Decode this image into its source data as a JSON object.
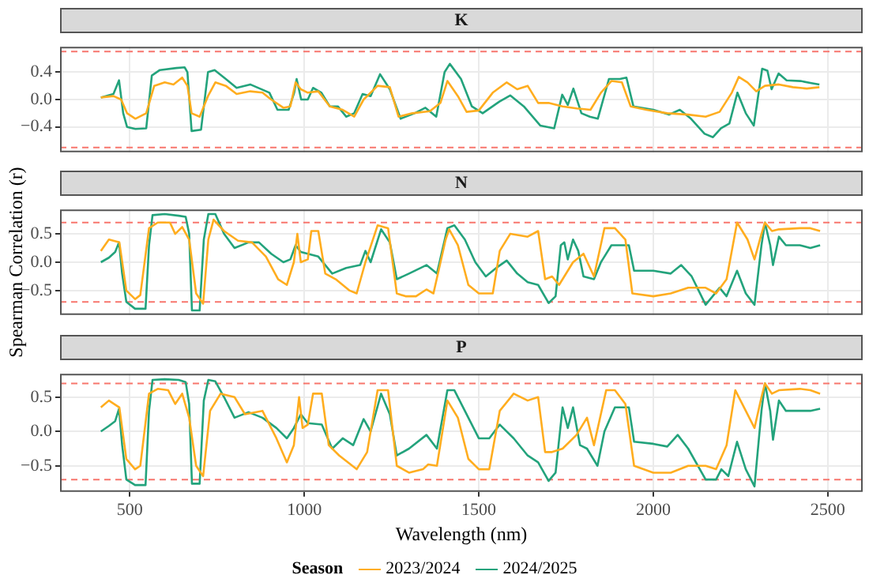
{
  "chart_data": [
    {
      "type": "line",
      "title": "K",
      "xlim": [
        300,
        2600
      ],
      "xticks": [
        500,
        1000,
        1500,
        2000,
        2500
      ],
      "ylim": [
        -0.77,
        0.77
      ],
      "yticks": [
        {
          "value": -0.4,
          "label": "−0.4"
        },
        {
          "value": 0,
          "label": "0.0"
        },
        {
          "value": 0.4,
          "label": "0.4"
        }
      ],
      "tick_labels": "y",
      "grid": true,
      "line_style": "solid",
      "ref_lines": [
        {
          "axis": "y",
          "value": 0.7,
          "color": "#f8766d",
          "line_style": "dashed"
        },
        {
          "axis": "y",
          "value": -0.7,
          "color": "#f8766d",
          "line_style": "dashed"
        }
      ],
      "series": [
        {
          "color": "#ffad1f",
          "x": [
            417,
            453,
            475,
            492,
            516,
            547,
            570,
            600,
            625,
            650,
            665,
            677,
            700,
            724,
            745,
            775,
            806,
            845,
            880,
            905,
            940,
            960,
            975,
            990,
            1010,
            1040,
            1073,
            1110,
            1143,
            1170,
            1210,
            1245,
            1270,
            1310,
            1360,
            1390,
            1410,
            1440,
            1465,
            1500,
            1540,
            1580,
            1610,
            1640,
            1670,
            1700,
            1740,
            1780,
            1820,
            1850,
            1880,
            1910,
            1935,
            1980,
            2040,
            2100,
            2150,
            2190,
            2225,
            2245,
            2270,
            2295,
            2320,
            2360,
            2400,
            2440,
            2476
          ],
          "values": [
            0.03,
            0.05,
            0,
            -0.2,
            -0.28,
            -0.2,
            0.2,
            0.25,
            0.22,
            0.32,
            0.2,
            -0.2,
            -0.25,
            0.05,
            0.25,
            0.2,
            0.08,
            0.12,
            0.1,
            0,
            -0.12,
            -0.1,
            0.25,
            0.15,
            0.1,
            0.12,
            -0.1,
            -0.15,
            -0.25,
            0,
            0.2,
            0.18,
            -0.25,
            -0.2,
            -0.17,
            -0.05,
            0.27,
            0.05,
            -0.18,
            -0.16,
            0.1,
            0.25,
            0.15,
            0.2,
            -0.05,
            -0.05,
            -0.1,
            -0.13,
            -0.15,
            0.1,
            0.27,
            0.25,
            -0.1,
            -0.15,
            -0.2,
            -0.22,
            -0.25,
            -0.18,
            0.1,
            0.33,
            0.25,
            0.12,
            0.2,
            0.22,
            0.18,
            0.16,
            0.18
          ]
        },
        {
          "color": "#23a37c",
          "x": [
            417,
            453,
            469,
            481,
            492,
            516,
            547,
            563,
            586,
            633,
            657,
            665,
            677,
            704,
            724,
            743,
            775,
            806,
            845,
            900,
            923,
            955,
            971,
            978,
            991,
            1010,
            1025,
            1049,
            1073,
            1096,
            1120,
            1143,
            1167,
            1190,
            1217,
            1245,
            1276,
            1316,
            1347,
            1378,
            1402,
            1417,
            1449,
            1480,
            1511,
            1559,
            1590,
            1629,
            1676,
            1716,
            1739,
            1755,
            1771,
            1794,
            1818,
            1841,
            1873,
            1904,
            1923,
            1943,
            2000,
            2045,
            2076,
            2108,
            2147,
            2171,
            2194,
            2218,
            2241,
            2265,
            2288,
            2312,
            2327,
            2339,
            2359,
            2382,
            2422,
            2453,
            2476
          ],
          "values": [
            0.03,
            0.08,
            0.28,
            -0.2,
            -0.4,
            -0.43,
            -0.42,
            0.35,
            0.43,
            0.46,
            0.47,
            0.4,
            -0.46,
            -0.44,
            0.4,
            0.43,
            0.3,
            0.17,
            0.22,
            0.1,
            -0.15,
            -0.15,
            0.1,
            0.3,
            0,
            0,
            0.17,
            0.1,
            -0.1,
            -0.1,
            -0.25,
            -0.2,
            0.08,
            0.05,
            0.37,
            0.15,
            -0.28,
            -0.2,
            -0.12,
            -0.25,
            0.4,
            0.52,
            0.3,
            -0.1,
            -0.2,
            -0.03,
            0.06,
            -0.1,
            -0.38,
            -0.42,
            0.07,
            -0.08,
            0.16,
            -0.2,
            -0.25,
            -0.28,
            0.3,
            0.3,
            0.32,
            -0.1,
            -0.15,
            -0.22,
            -0.15,
            -0.28,
            -0.5,
            -0.55,
            -0.42,
            -0.35,
            0.1,
            -0.2,
            -0.38,
            0.45,
            0.42,
            0.15,
            0.38,
            0.28,
            0.27,
            0.24,
            0.22
          ]
        }
      ]
    },
    {
      "type": "line",
      "title": "N",
      "ylabel": "Spearman Correlation (r)",
      "xlim": [
        300,
        2600
      ],
      "xticks": [
        500,
        1000,
        1500,
        2000,
        2500
      ],
      "ylim": [
        -0.93,
        0.93
      ],
      "yticks": [
        {
          "value": -0.5,
          "label": "−0.5"
        },
        {
          "value": 0,
          "label": "0.0"
        },
        {
          "value": 0.5,
          "label": "0.5"
        }
      ],
      "tick_labels": "y",
      "grid": true,
      "line_style": "solid",
      "ref_lines": [
        {
          "axis": "y",
          "value": 0.7,
          "color": "#f8766d",
          "line_style": "dashed"
        },
        {
          "axis": "y",
          "value": -0.7,
          "color": "#f8766d",
          "line_style": "dashed"
        }
      ],
      "series": [
        {
          "color": "#ffad1f",
          "x": [
            417,
            440,
            470,
            490,
            515,
            530,
            555,
            580,
            615,
            630,
            650,
            670,
            690,
            710,
            725,
            740,
            770,
            810,
            850,
            890,
            925,
            950,
            970,
            980,
            990,
            1010,
            1020,
            1040,
            1060,
            1090,
            1130,
            1150,
            1175,
            1210,
            1240,
            1265,
            1290,
            1320,
            1350,
            1370,
            1405,
            1415,
            1440,
            1470,
            1500,
            1540,
            1560,
            1590,
            1640,
            1670,
            1690,
            1710,
            1730,
            1770,
            1800,
            1830,
            1860,
            1890,
            1920,
            1940,
            2000,
            2050,
            2100,
            2150,
            2180,
            2210,
            2240,
            2270,
            2290,
            2310,
            2320,
            2340,
            2360,
            2420,
            2450,
            2478
          ],
          "values": [
            0.2,
            0.4,
            0.35,
            -0.5,
            -0.65,
            -0.58,
            0.6,
            0.7,
            0.7,
            0.5,
            0.62,
            0.4,
            -0.55,
            -0.73,
            0.4,
            0.75,
            0.55,
            0.38,
            0.35,
            0.1,
            -0.3,
            -0.4,
            0,
            0.5,
            0,
            0.05,
            0.55,
            0.55,
            -0.2,
            -0.3,
            -0.5,
            -0.55,
            0,
            0.65,
            0.6,
            -0.55,
            -0.6,
            -0.6,
            -0.48,
            -0.55,
            0.4,
            0.58,
            0.3,
            -0.4,
            -0.55,
            -0.55,
            0.2,
            0.5,
            0.45,
            0.55,
            -0.3,
            -0.25,
            -0.4,
            0,
            0.15,
            -0.25,
            0.6,
            0.6,
            0.4,
            -0.55,
            -0.6,
            -0.55,
            -0.45,
            -0.45,
            -0.55,
            -0.3,
            0.7,
            0.4,
            0.05,
            0.5,
            0.7,
            0.55,
            0.58,
            0.6,
            0.6,
            0.55
          ]
        },
        {
          "color": "#23a37c",
          "x": [
            417,
            440,
            458,
            469,
            478,
            490,
            515,
            545,
            555,
            565,
            600,
            640,
            660,
            670,
            678,
            700,
            712,
            725,
            745,
            770,
            800,
            840,
            870,
            905,
            940,
            960,
            975,
            990,
            1040,
            1080,
            1120,
            1160,
            1175,
            1190,
            1220,
            1245,
            1265,
            1300,
            1350,
            1380,
            1410,
            1430,
            1460,
            1490,
            1520,
            1550,
            1580,
            1610,
            1640,
            1670,
            1700,
            1720,
            1735,
            1745,
            1755,
            1770,
            1785,
            1800,
            1830,
            1850,
            1880,
            1910,
            1930,
            1945,
            2000,
            2050,
            2080,
            2110,
            2150,
            2190,
            2210,
            2240,
            2265,
            2290,
            2310,
            2320,
            2335,
            2343,
            2360,
            2380,
            2420,
            2450,
            2478
          ],
          "values": [
            0,
            0.08,
            0.18,
            0.35,
            -0.2,
            -0.7,
            -0.82,
            -0.82,
            0.3,
            0.83,
            0.85,
            0.82,
            0.8,
            0.5,
            -0.85,
            -0.85,
            0.4,
            0.85,
            0.85,
            0.5,
            0.25,
            0.35,
            0.35,
            0.15,
            0,
            0.05,
            0.3,
            0.18,
            0.1,
            -0.2,
            -0.1,
            -0.05,
            0.2,
            0,
            0.58,
            0.35,
            -0.3,
            -0.2,
            -0.05,
            -0.2,
            0.6,
            0.65,
            0.4,
            0,
            -0.25,
            -0.1,
            0.03,
            -0.2,
            -0.35,
            -0.4,
            -0.72,
            -0.6,
            0.3,
            0.35,
            0.05,
            0.4,
            0.2,
            -0.25,
            -0.3,
            0,
            0.3,
            0.3,
            0.3,
            -0.15,
            -0.15,
            -0.2,
            -0.05,
            -0.25,
            -0.75,
            -0.45,
            -0.6,
            -0.15,
            -0.55,
            -0.75,
            0.3,
            0.7,
            0.3,
            -0.05,
            0.45,
            0.3,
            0.3,
            0.25,
            0.3
          ]
        }
      ]
    },
    {
      "type": "line",
      "title": "P",
      "xlabel": "Wavelength (nm)",
      "legend": "bottom",
      "legend_title": "Season",
      "xlim": [
        300,
        2600
      ],
      "xticks": [
        500,
        1000,
        1500,
        2000,
        2500
      ],
      "ylim": [
        -0.88,
        0.84
      ],
      "yticks": [
        {
          "value": -0.5,
          "label": "−0.5"
        },
        {
          "value": 0,
          "label": "0.0"
        },
        {
          "value": 0.5,
          "label": "0.5"
        }
      ],
      "grid": true,
      "line_style": "solid",
      "ref_lines": [
        {
          "axis": "y",
          "value": 0.7,
          "color": "#f8766d",
          "line_style": "dashed"
        },
        {
          "axis": "y",
          "value": -0.7,
          "color": "#f8766d",
          "line_style": "dashed"
        }
      ],
      "series": [
        {
          "name": "2023/2024",
          "color": "#ffad1f",
          "x": [
            417,
            440,
            470,
            490,
            515,
            530,
            555,
            580,
            610,
            630,
            650,
            670,
            690,
            710,
            730,
            760,
            800,
            830,
            880,
            920,
            950,
            970,
            985,
            995,
            1010,
            1025,
            1050,
            1070,
            1100,
            1150,
            1180,
            1210,
            1240,
            1265,
            1300,
            1340,
            1355,
            1380,
            1410,
            1440,
            1470,
            1500,
            1530,
            1560,
            1600,
            1640,
            1670,
            1690,
            1710,
            1740,
            1780,
            1810,
            1830,
            1865,
            1890,
            1920,
            1945,
            2000,
            2050,
            2100,
            2150,
            2180,
            2210,
            2235,
            2265,
            2290,
            2310,
            2320,
            2340,
            2360,
            2420,
            2450,
            2478
          ],
          "values": [
            0.35,
            0.45,
            0.35,
            -0.4,
            -0.55,
            -0.5,
            0.55,
            0.62,
            0.6,
            0.4,
            0.55,
            0.2,
            -0.5,
            -0.65,
            0.3,
            0.55,
            0.5,
            0.25,
            0.3,
            -0.1,
            -0.45,
            -0.2,
            0.5,
            0.05,
            0.1,
            0.55,
            0.55,
            -0.2,
            -0.35,
            -0.55,
            -0.3,
            0.6,
            0.6,
            -0.5,
            -0.6,
            -0.55,
            -0.48,
            -0.5,
            0.45,
            0.2,
            -0.4,
            -0.55,
            -0.55,
            0.3,
            0.55,
            0.45,
            0.5,
            -0.3,
            -0.3,
            -0.25,
            -0.05,
            0.2,
            -0.2,
            0.6,
            0.6,
            0.4,
            -0.5,
            -0.6,
            -0.6,
            -0.5,
            -0.5,
            -0.55,
            -0.2,
            0.6,
            0.3,
            0.05,
            0.5,
            0.7,
            0.55,
            0.6,
            0.62,
            0.6,
            0.55
          ]
        },
        {
          "name": "2024/2025",
          "color": "#23a37c",
          "x": [
            417,
            440,
            458,
            469,
            478,
            490,
            515,
            545,
            555,
            565,
            600,
            640,
            660,
            670,
            678,
            700,
            712,
            725,
            745,
            770,
            800,
            840,
            880,
            920,
            950,
            970,
            990,
            1010,
            1050,
            1080,
            1110,
            1140,
            1170,
            1190,
            1220,
            1245,
            1265,
            1300,
            1350,
            1380,
            1410,
            1430,
            1460,
            1500,
            1530,
            1560,
            1600,
            1640,
            1670,
            1700,
            1720,
            1740,
            1755,
            1770,
            1790,
            1810,
            1840,
            1860,
            1890,
            1930,
            1945,
            2000,
            2040,
            2070,
            2100,
            2150,
            2180,
            2195,
            2215,
            2240,
            2265,
            2290,
            2310,
            2320,
            2335,
            2343,
            2360,
            2380,
            2420,
            2450,
            2478
          ],
          "values": [
            0,
            0.08,
            0.15,
            0.33,
            -0.2,
            -0.7,
            -0.78,
            -0.78,
            0.3,
            0.75,
            0.76,
            0.75,
            0.72,
            0.4,
            -0.76,
            -0.76,
            0.45,
            0.75,
            0.73,
            0.5,
            0.2,
            0.28,
            0.2,
            0.05,
            -0.1,
            0.05,
            0.25,
            0.12,
            0.1,
            -0.25,
            -0.1,
            -0.2,
            0.18,
            0,
            0.55,
            0.25,
            -0.35,
            -0.25,
            -0.05,
            -0.25,
            0.6,
            0.6,
            0.3,
            -0.1,
            -0.1,
            0.1,
            -0.1,
            -0.35,
            -0.45,
            -0.72,
            -0.6,
            0.35,
            0.05,
            0.35,
            -0.2,
            -0.25,
            -0.5,
            0,
            0.35,
            0.35,
            -0.15,
            -0.18,
            -0.22,
            -0.05,
            -0.25,
            -0.7,
            -0.7,
            -0.55,
            -0.65,
            -0.15,
            -0.55,
            -0.8,
            0.3,
            0.7,
            0.3,
            -0.12,
            0.45,
            0.3,
            0.3,
            0.3,
            0.33
          ]
        }
      ]
    }
  ]
}
